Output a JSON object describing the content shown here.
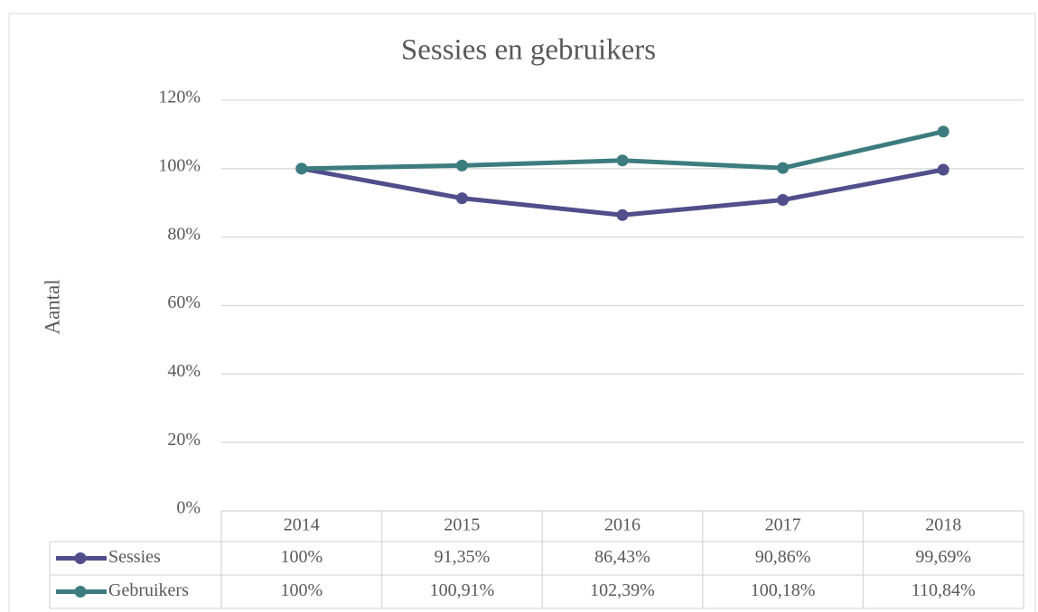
{
  "chart_data": {
    "type": "line",
    "title": "Sessies en gebruikers",
    "y_label": "Aantal",
    "categories": [
      "2014",
      "2015",
      "2016",
      "2017",
      "2018"
    ],
    "series": [
      {
        "name": "Sessies",
        "color": "#514e8c",
        "values": [
          100,
          91.35,
          86.43,
          90.86,
          99.69
        ],
        "value_labels": [
          "100%",
          "91,35%",
          "86,43%",
          "90,86%",
          "99,69%"
        ]
      },
      {
        "name": "Gebruikers",
        "color": "#3d7c7e",
        "values": [
          100,
          100.91,
          102.39,
          100.18,
          110.84
        ],
        "value_labels": [
          "100%",
          "100,91%",
          "102,39%",
          "100,18%",
          "110,84%"
        ]
      }
    ],
    "ylim": [
      0,
      120
    ],
    "yticks": [
      {
        "value": 0,
        "label": "0%"
      },
      {
        "value": 20,
        "label": "20%"
      },
      {
        "value": 40,
        "label": "40%"
      },
      {
        "value": 60,
        "label": "60%"
      },
      {
        "value": 80,
        "label": "80%"
      },
      {
        "value": 100,
        "label": "100%"
      },
      {
        "value": 120,
        "label": "120%"
      }
    ],
    "grid": true
  }
}
